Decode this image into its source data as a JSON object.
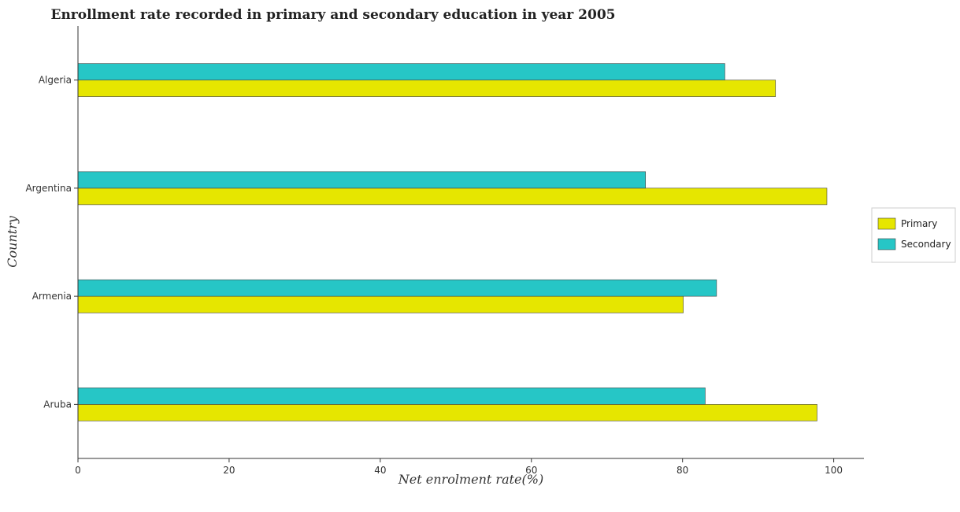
{
  "chart_data": {
    "type": "bar",
    "orientation": "horizontal",
    "title": "Enrollment rate recorded in primary and secondary education in year 2005",
    "xlabel": "Net enrolment rate(%)",
    "ylabel": "Country",
    "categories": [
      "Algeria",
      "Argentina",
      "Armenia",
      "Aruba"
    ],
    "series": [
      {
        "name": "Primary",
        "color": "#e6e600",
        "values": [
          92.3,
          99.1,
          80.1,
          97.8
        ]
      },
      {
        "name": "Secondary",
        "color": "#26c6c6",
        "values": [
          85.6,
          75.1,
          84.5,
          83.0
        ]
      }
    ],
    "xlim": [
      0,
      104
    ],
    "xticks": [
      "0",
      "20",
      "40",
      "60",
      "80",
      "100"
    ],
    "grid": false,
    "legend_position": "right"
  }
}
